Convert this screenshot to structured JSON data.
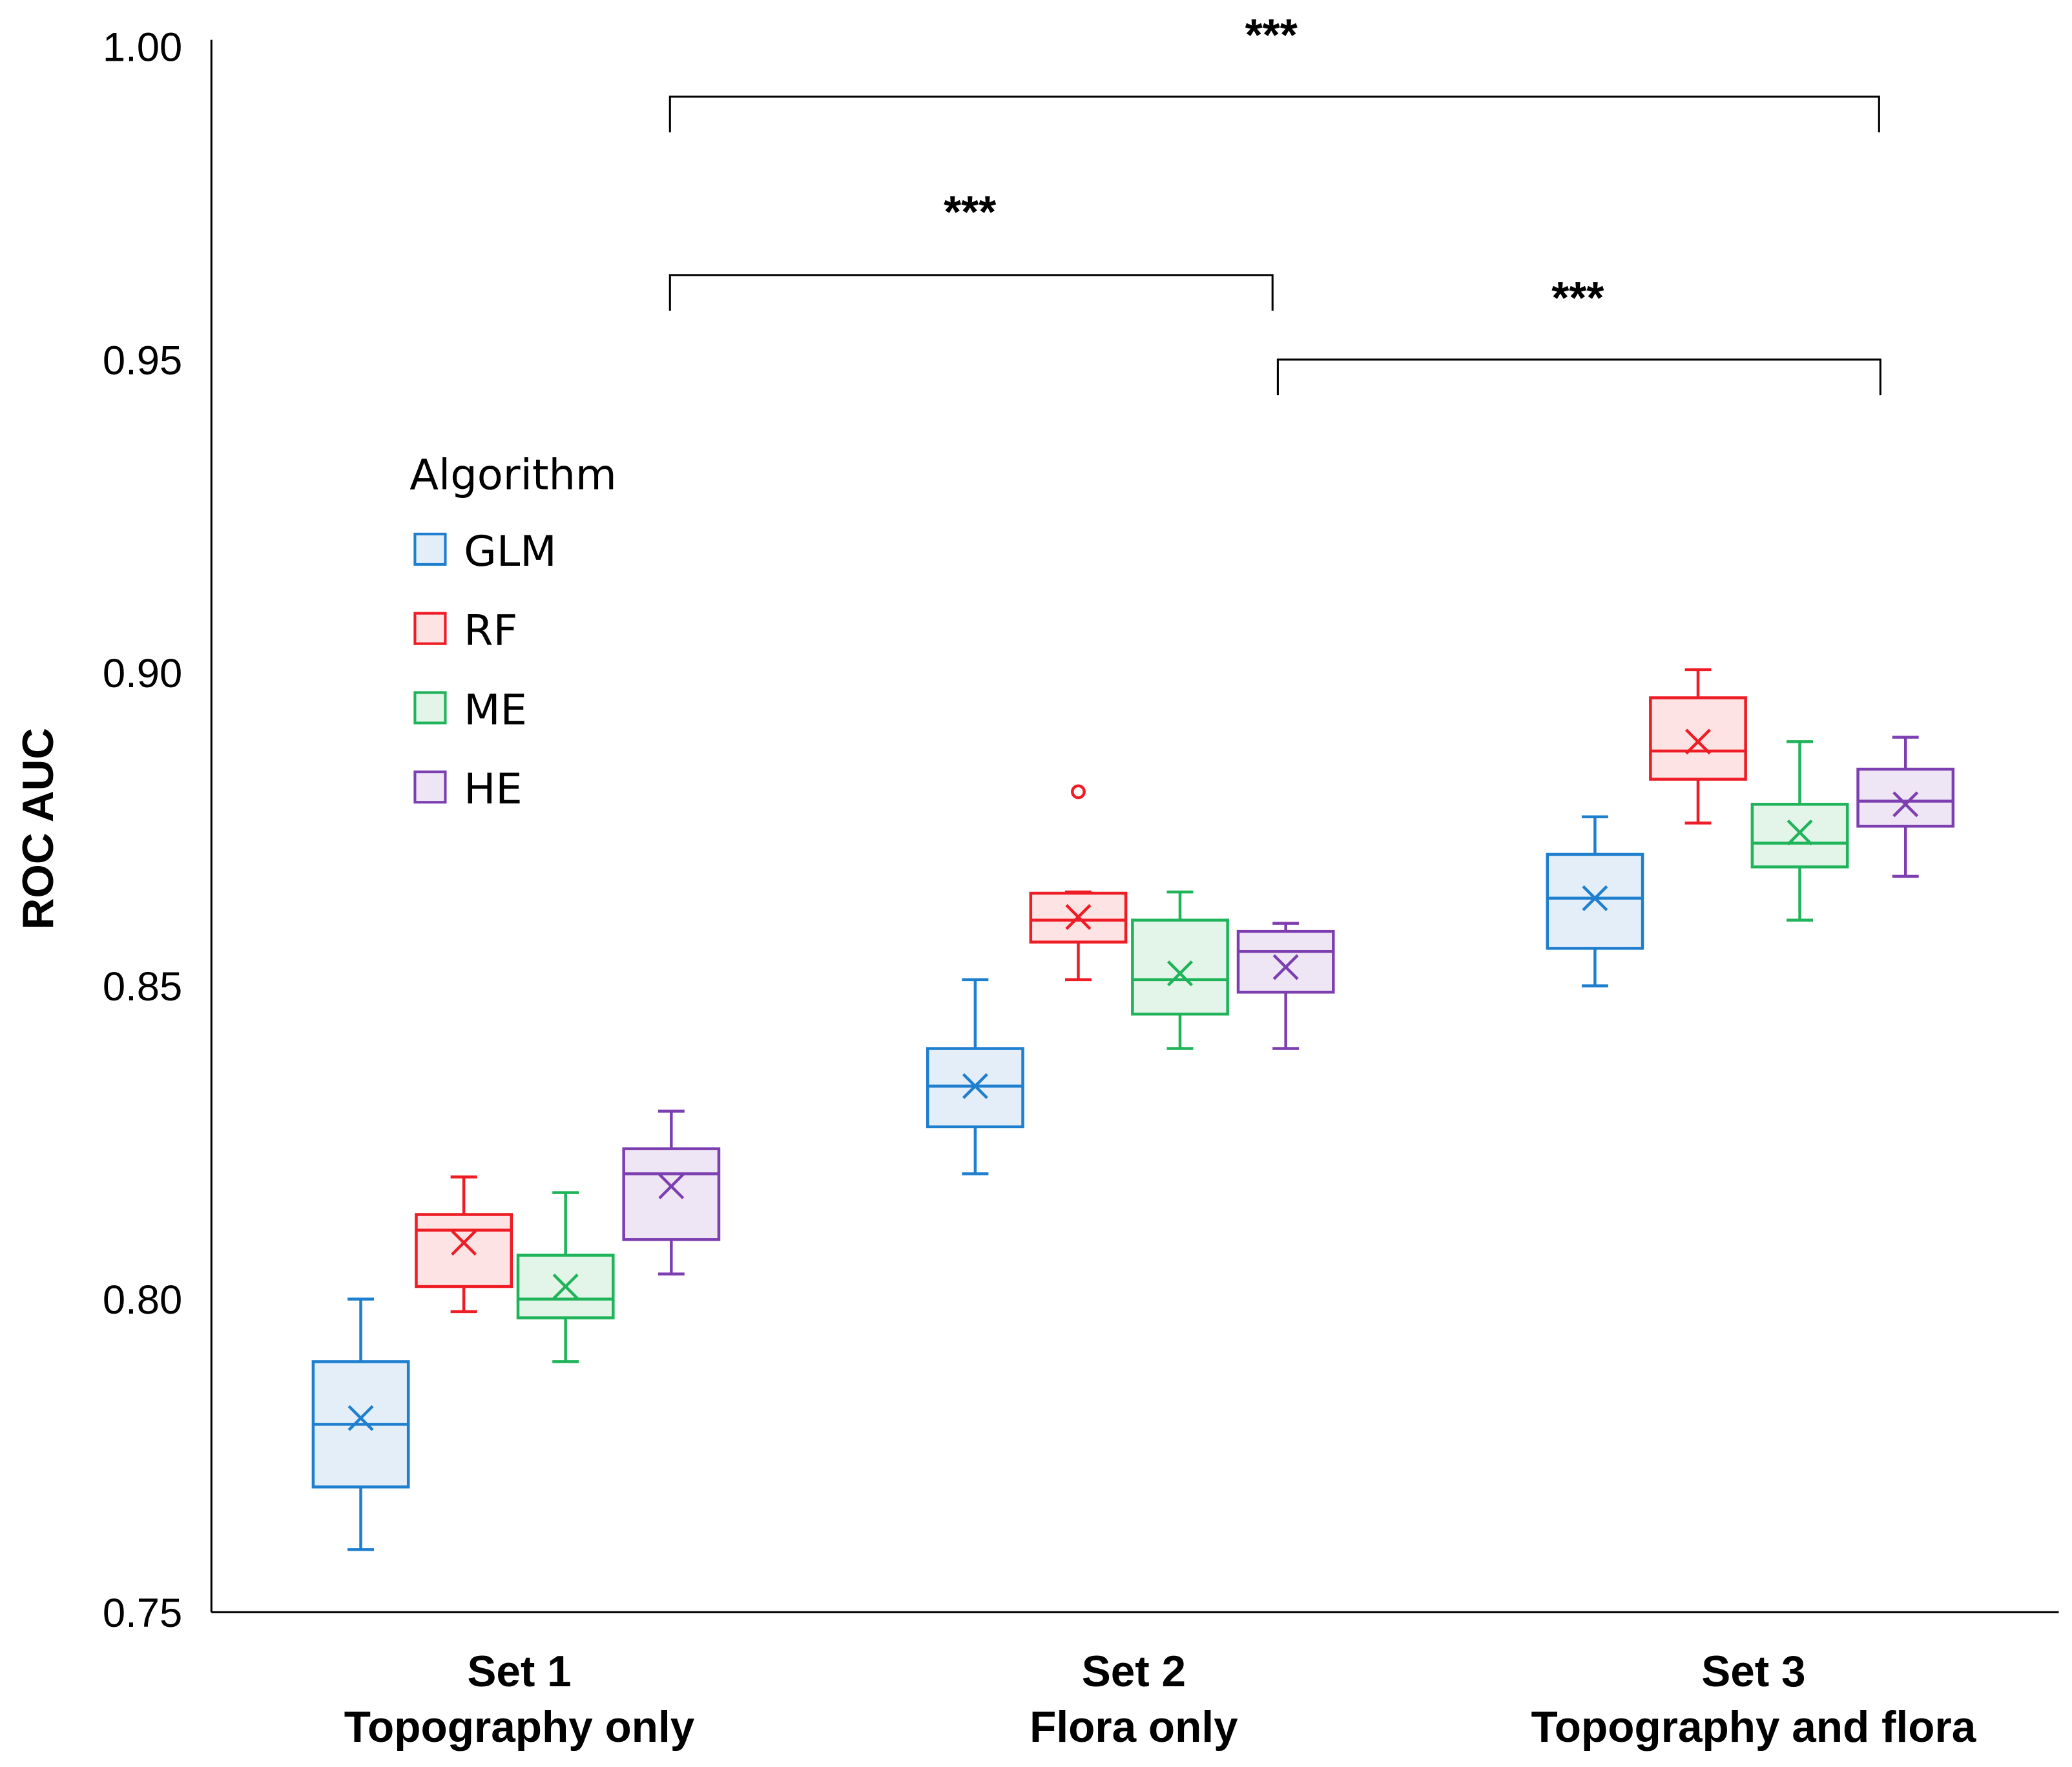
{
  "chart_data": {
    "type": "box",
    "ylabel": "ROC AUC",
    "xlabel": "",
    "ylim": [
      0.75,
      1.0
    ],
    "yticks": [
      "0.75",
      "0.80",
      "0.85",
      "0.90",
      "0.95",
      "1.00"
    ],
    "grid": false,
    "categories": [
      {
        "line1": "Set 1",
        "line2": "Topography only"
      },
      {
        "line1": "Set 2",
        "line2": "Flora only"
      },
      {
        "line1": "Set 3",
        "line2": "Topography and flora"
      }
    ],
    "legend": {
      "title": "Algorithm",
      "placement": "upper-left",
      "entries": [
        "GLM",
        "RF",
        "ME",
        "HE"
      ]
    },
    "colors": {
      "GLM": "#1f7fcf",
      "RF": "#ee1c25",
      "ME": "#1fb35a",
      "HE": "#7d3fb0"
    },
    "fills": {
      "GLM": "#e3eef9",
      "RF": "#fde3e3",
      "ME": "#e3f4e8",
      "HE": "#eee6f4"
    },
    "series": [
      {
        "name": "GLM",
        "boxes": [
          {
            "min": 0.76,
            "q1": 0.77,
            "median": 0.78,
            "q3": 0.79,
            "max": 0.8,
            "mean": 0.781,
            "outliers": []
          },
          {
            "min": 0.82,
            "q1": 0.8275,
            "median": 0.834,
            "q3": 0.84,
            "max": 0.851,
            "mean": 0.834,
            "outliers": []
          },
          {
            "min": 0.85,
            "q1": 0.856,
            "median": 0.864,
            "q3": 0.871,
            "max": 0.877,
            "mean": 0.864,
            "outliers": []
          }
        ]
      },
      {
        "name": "RF",
        "boxes": [
          {
            "min": 0.798,
            "q1": 0.802,
            "median": 0.811,
            "q3": 0.8135,
            "max": 0.8195,
            "mean": 0.809,
            "outliers": []
          },
          {
            "min": 0.851,
            "q1": 0.857,
            "median": 0.8605,
            "q3": 0.8648,
            "max": 0.865,
            "mean": 0.861,
            "outliers": [
              0.881
            ]
          },
          {
            "min": 0.876,
            "q1": 0.883,
            "median": 0.8875,
            "q3": 0.896,
            "max": 0.9005,
            "mean": 0.889,
            "outliers": []
          }
        ]
      },
      {
        "name": "ME",
        "boxes": [
          {
            "min": 0.79,
            "q1": 0.797,
            "median": 0.8,
            "q3": 0.807,
            "max": 0.817,
            "mean": 0.802,
            "outliers": []
          },
          {
            "min": 0.84,
            "q1": 0.8455,
            "median": 0.851,
            "q3": 0.8605,
            "max": 0.865,
            "mean": 0.852,
            "outliers": []
          },
          {
            "min": 0.8605,
            "q1": 0.869,
            "median": 0.8728,
            "q3": 0.879,
            "max": 0.889,
            "mean": 0.8745,
            "outliers": []
          }
        ]
      },
      {
        "name": "HE",
        "boxes": [
          {
            "min": 0.804,
            "q1": 0.8095,
            "median": 0.82,
            "q3": 0.824,
            "max": 0.83,
            "mean": 0.818,
            "outliers": []
          },
          {
            "min": 0.84,
            "q1": 0.849,
            "median": 0.8555,
            "q3": 0.8587,
            "max": 0.86,
            "mean": 0.853,
            "outliers": []
          },
          {
            "min": 0.8675,
            "q1": 0.8755,
            "median": 0.8795,
            "q3": 0.8846,
            "max": 0.8897,
            "mean": 0.879,
            "outliers": []
          }
        ]
      }
    ],
    "annotations": [
      {
        "from": "Set 1",
        "to": "Set 3",
        "label": "***"
      },
      {
        "from": "Set 1",
        "to": "Set 2",
        "label": "***"
      },
      {
        "from": "Set 2",
        "to": "Set 3",
        "label": "***"
      }
    ]
  }
}
